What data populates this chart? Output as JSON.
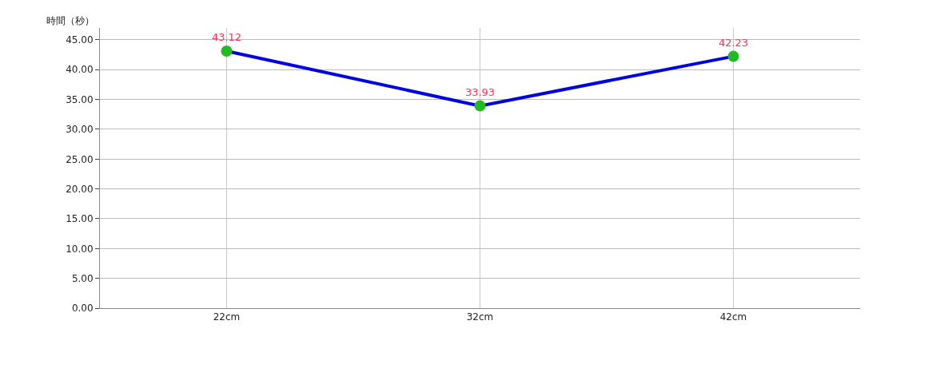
{
  "chart_data": {
    "type": "line",
    "ylabel": "時間（秒）",
    "categories": [
      "22cm",
      "32cm",
      "42cm"
    ],
    "series": [
      {
        "color": "#0000e0",
        "values": [
          43.12,
          33.93,
          42.23
        ]
      }
    ],
    "marker": "circle",
    "line_style": "solid",
    "ylim": [
      0,
      47
    ],
    "yticks": [
      {
        "value": 0,
        "label": "0.00"
      },
      {
        "value": 5,
        "label": "5.00"
      },
      {
        "value": 10,
        "label": "10.00"
      },
      {
        "value": 15,
        "label": "15.00"
      },
      {
        "value": 20,
        "label": "20.00"
      },
      {
        "value": 25,
        "label": "25.00"
      },
      {
        "value": 30,
        "label": "30.00"
      },
      {
        "value": 35,
        "label": "35.00"
      },
      {
        "value": 40,
        "label": "40.00"
      },
      {
        "value": 45,
        "label": "45.00"
      }
    ],
    "grid": true,
    "data_labels": true
  }
}
